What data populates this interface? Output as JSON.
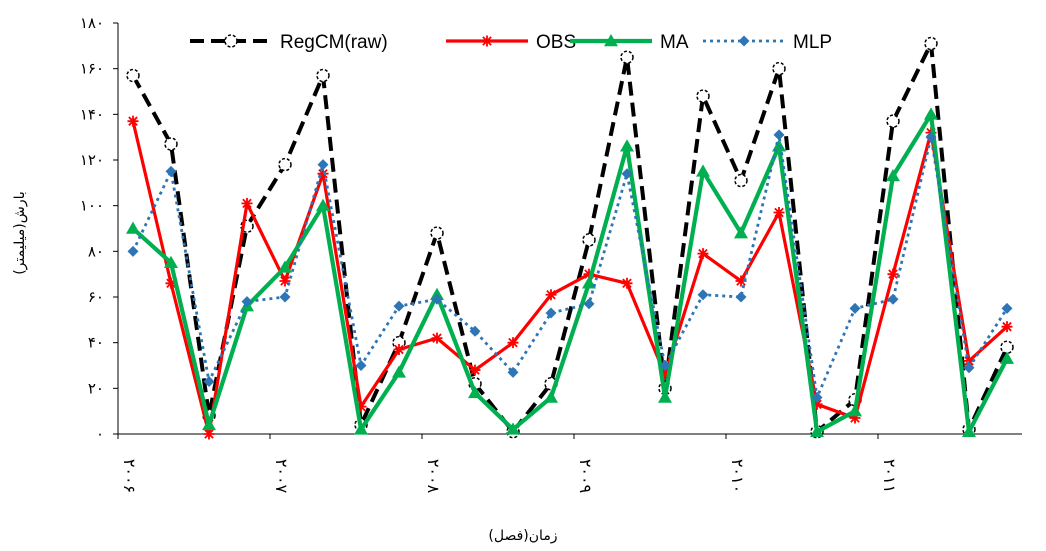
{
  "chart_data": {
    "type": "line",
    "title": "",
    "xlabel": "زمان(فصل)",
    "ylabel": "بارش(میلیمتر)",
    "ylim": [
      0,
      180
    ],
    "y_ticks": [
      {
        "value": 0,
        "label": "۰"
      },
      {
        "value": 20,
        "label": "۲۰"
      },
      {
        "value": 40,
        "label": "۴۰"
      },
      {
        "value": 60,
        "label": "۶۰"
      },
      {
        "value": 80,
        "label": "۸۰"
      },
      {
        "value": 100,
        "label": "۱۰۰"
      },
      {
        "value": 120,
        "label": "۱۲۰"
      },
      {
        "value": 140,
        "label": "۱۴۰"
      },
      {
        "value": 160,
        "label": "۱۶۰"
      },
      {
        "value": 180,
        "label": "۱۸۰"
      }
    ],
    "x_count": 24,
    "x_year_labels": [
      {
        "index": 0,
        "label": "۲۰۰۶"
      },
      {
        "index": 4,
        "label": "۲۰۰۷"
      },
      {
        "index": 8,
        "label": "۲۰۰۸"
      },
      {
        "index": 12,
        "label": "۲۰۰۹"
      },
      {
        "index": 16,
        "label": "۲۰۱۰"
      },
      {
        "index": 20,
        "label": "۲۰۱۱"
      }
    ],
    "grid": false,
    "legend_position": "top",
    "series": [
      {
        "name": "RegCM(raw)",
        "color": "#000000",
        "dash": "dashed",
        "marker": "circle-open",
        "values": [
          157,
          127,
          8,
          91,
          118,
          157,
          4,
          40,
          88,
          22,
          1,
          22,
          85,
          165,
          20,
          148,
          111,
          160,
          1,
          15,
          137,
          171,
          2,
          38
        ]
      },
      {
        "name": "OBS",
        "color": "#ff0000",
        "dash": "solid",
        "marker": "star",
        "values": [
          137,
          66,
          0,
          101,
          67,
          114,
          12,
          37,
          42,
          28,
          40,
          61,
          70,
          66,
          26,
          79,
          67,
          97,
          13,
          7,
          70,
          132,
          32,
          47
        ]
      },
      {
        "name": "MA",
        "color": "#00b050",
        "dash": "solid",
        "marker": "triangle",
        "values": [
          90,
          75,
          4,
          56,
          73,
          100,
          2,
          27,
          61,
          18,
          2,
          16,
          66,
          126,
          16,
          115,
          88,
          126,
          1,
          10,
          113,
          140,
          1,
          33
        ]
      },
      {
        "name": "MLP",
        "color": "#2e75b6",
        "dash": "dotted",
        "marker": "diamond",
        "values": [
          80,
          115,
          23,
          58,
          60,
          118,
          30,
          56,
          59,
          45,
          27,
          53,
          57,
          114,
          30,
          61,
          60,
          131,
          16,
          55,
          59,
          130,
          29,
          55
        ]
      }
    ]
  }
}
